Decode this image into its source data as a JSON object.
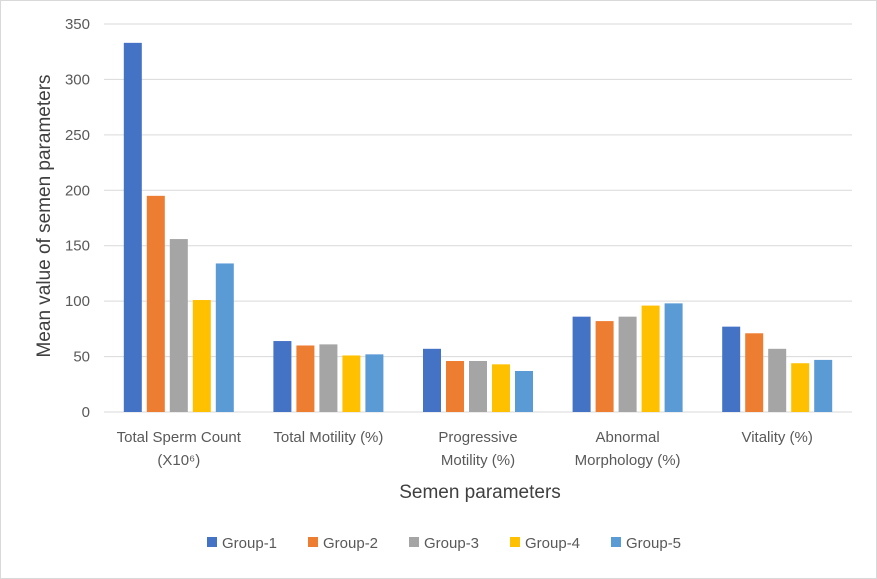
{
  "chart_data": {
    "type": "bar",
    "categories": [
      [
        "Total Sperm Count",
        "(X10⁶)"
      ],
      [
        "Total Motility (%)"
      ],
      [
        "Progressive",
        "Motility (%)"
      ],
      [
        "Abnormal",
        "Morphology (%)"
      ],
      [
        "Vitality (%)"
      ]
    ],
    "series": [
      {
        "name": "Group-1",
        "color": "#4472C4",
        "values": [
          333,
          64,
          57,
          86,
          77
        ]
      },
      {
        "name": "Group-2",
        "color": "#ED7D31",
        "values": [
          195,
          60,
          46,
          82,
          71
        ]
      },
      {
        "name": "Group-3",
        "color": "#A5A5A5",
        "values": [
          156,
          61,
          46,
          86,
          57
        ]
      },
      {
        "name": "Group-4",
        "color": "#FFC000",
        "values": [
          101,
          51,
          43,
          96,
          44
        ]
      },
      {
        "name": "Group-5",
        "color": "#5B9BD5",
        "values": [
          134,
          52,
          37,
          98,
          47
        ]
      }
    ],
    "xlabel": "Semen parameters",
    "ylabel": "Mean value of semen parameters",
    "ylim": [
      0,
      350
    ],
    "yticks": [
      0,
      50,
      100,
      150,
      200,
      250,
      300,
      350
    ],
    "grid": true,
    "legend_position": "bottom"
  }
}
